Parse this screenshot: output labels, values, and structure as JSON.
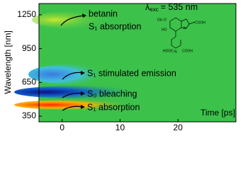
{
  "chart_data": {
    "type": "heatmap",
    "x_label": "Time [ps]",
    "y_label": "Wavelength [nm]",
    "xlim": [
      -4,
      30
    ],
    "xticks": [
      0,
      10,
      20
    ],
    "ylim": [
      300,
      1350
    ],
    "yticks": [
      350,
      650,
      950,
      1250
    ],
    "excitation": {
      "symbol": "λ",
      "subscript": "exc",
      "value": "= 535 nm"
    },
    "annotations": [
      "betanin",
      "S₁ absorption",
      "S₁ stimulated emission",
      "S₀ bleaching",
      "S₁ absorption"
    ],
    "structure_labels": [
      "Glc-O",
      "HO",
      "N",
      "COOH",
      "HOOC",
      "N",
      "COOH"
    ]
  }
}
